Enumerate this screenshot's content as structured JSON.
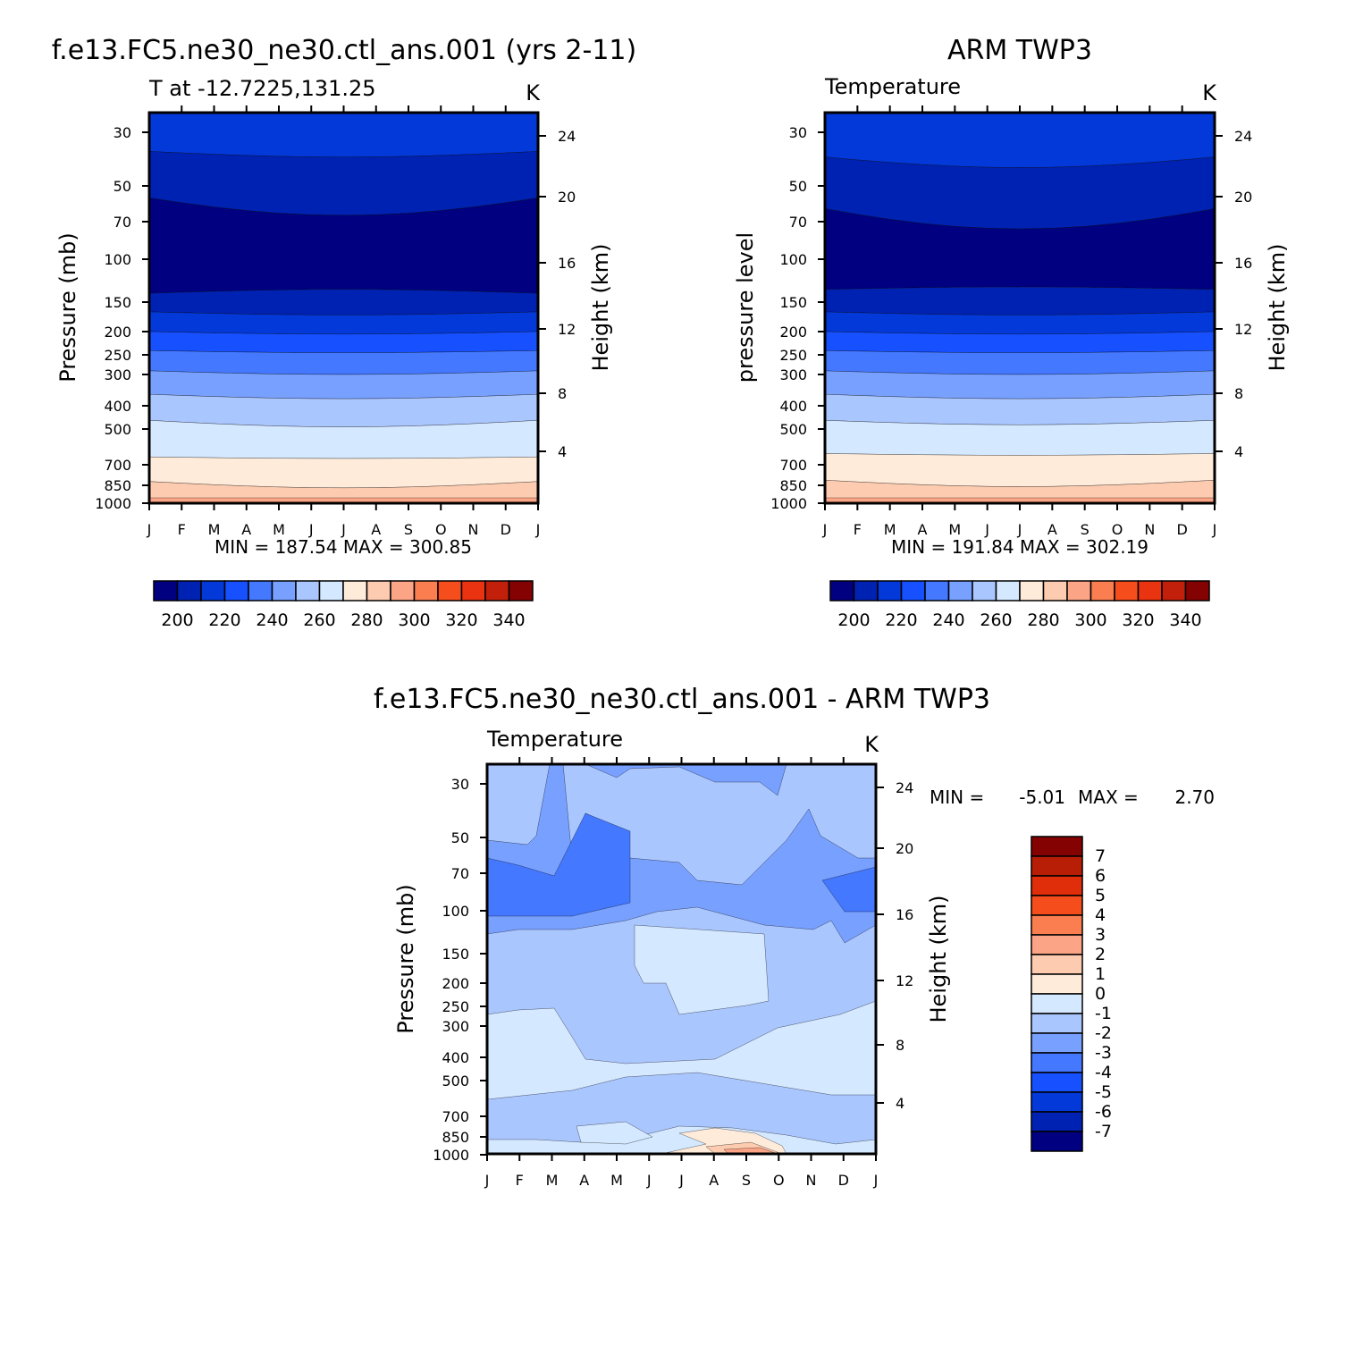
{
  "palettes": {
    "abs": [
      "#000080",
      "#0022b2",
      "#0338d9",
      "#1650ff",
      "#4478ff",
      "#78a0ff",
      "#aac6ff",
      "#d4e8ff",
      "#ffebda",
      "#fccbb0",
      "#fca486",
      "#fb7e51",
      "#f54d1c",
      "#ea3310",
      "#c2200a",
      "#850202"
    ],
    "diff": [
      "#000080",
      "#0022b2",
      "#0338d9",
      "#1650ff",
      "#4478ff",
      "#78a0ff",
      "#aac6ff",
      "#d4e8ff",
      "#ffebda",
      "#fccbb0",
      "#fca486",
      "#fb7e51",
      "#f54d1c",
      "#e02d0a",
      "#b81e06",
      "#850202"
    ]
  },
  "panels": [
    {
      "id": "model",
      "title": "f.e13.FC5.ne30_ne30.ctl_ans.001 (yrs 2-11)",
      "subtitle_left": "T at -12.7225,131.25",
      "subtitle_right": "K",
      "ylabel": "Pressure (mb)",
      "y2label": "Height (km)",
      "minmax": "MIN = 187.54 MAX = 300.85",
      "colorbar_labels": [
        "200",
        "220",
        "240",
        "260",
        "280",
        "300",
        "320",
        "340"
      ]
    },
    {
      "id": "obs",
      "title": "ARM TWP3",
      "subtitle_left": "Temperature",
      "subtitle_right": "K",
      "ylabel": "pressure level",
      "y2label": "Height (km)",
      "minmax": "MIN = 191.84 MAX = 302.19",
      "colorbar_labels": [
        "200",
        "220",
        "240",
        "260",
        "280",
        "300",
        "320",
        "340"
      ]
    },
    {
      "id": "diff",
      "title": "f.e13.FC5.ne30_ne30.ctl_ans.001 - ARM TWP3",
      "subtitle_left": "Temperature",
      "subtitle_right": "K",
      "ylabel": "Pressure (mb)",
      "y2label": "Height (km)",
      "minmax_min_label": "MIN =",
      "minmax_min": "-5.01",
      "minmax_max_label": "MAX =",
      "minmax_max": "2.70",
      "colorbar_labels": [
        "7",
        "6",
        "5",
        "4",
        "3",
        "2",
        "1",
        "0",
        "-1",
        "-2",
        "-3",
        "-4",
        "-5",
        "-6",
        "-7"
      ]
    }
  ],
  "chart_data": [
    {
      "type": "heatmap",
      "title": "f.e13.FC5.ne30_ne30.ctl_ans.001 (yrs 2-11)",
      "months": [
        "J",
        "F",
        "M",
        "A",
        "M",
        "J",
        "J",
        "A",
        "S",
        "O",
        "N",
        "D",
        "J"
      ],
      "pressure_ticks": [
        30,
        50,
        70,
        100,
        150,
        200,
        250,
        300,
        400,
        500,
        700,
        850,
        1000
      ],
      "height_ticks": [
        4,
        8,
        12,
        16,
        20,
        24
      ],
      "units": "K",
      "contour_levels": [
        195,
        200,
        205,
        210,
        215,
        220,
        225,
        230,
        235,
        240,
        245,
        250,
        255,
        260,
        265,
        270,
        275,
        280,
        285,
        290,
        295,
        300,
        305,
        310,
        315,
        320,
        325,
        330,
        335,
        340,
        345
      ],
      "colorbar_levels": [
        200,
        220,
        240,
        260,
        280,
        300,
        320,
        340
      ],
      "band_boundaries_pressure_mb": [
        {
          "level": "200/220",
          "jan": 36,
          "jul": 38
        },
        {
          "level": "<200 top",
          "jan": 56,
          "jul": 66
        },
        {
          "level": "200 bottom",
          "jan": 138,
          "jul": 133
        },
        {
          "level": "220",
          "jan": 165,
          "jul": 170
        },
        {
          "level": "230",
          "jan": 200,
          "jul": 205
        },
        {
          "level": "240",
          "jan": 240,
          "jul": 245
        },
        {
          "level": "250",
          "jan": 290,
          "jul": 300
        },
        {
          "level": "260",
          "jan": 360,
          "jul": 375
        },
        {
          "level": "270",
          "jan": 460,
          "jul": 490
        },
        {
          "level": "280",
          "jan": 650,
          "jul": 660
        },
        {
          "level": "290",
          "jan": 820,
          "jul": 870
        }
      ],
      "min": 187.54,
      "max": 300.85
    },
    {
      "type": "heatmap",
      "title": "ARM TWP3",
      "months": [
        "J",
        "F",
        "M",
        "A",
        "M",
        "J",
        "J",
        "A",
        "S",
        "O",
        "N",
        "D",
        "J"
      ],
      "pressure_ticks": [
        30,
        50,
        70,
        100,
        150,
        200,
        250,
        300,
        400,
        500,
        700,
        850,
        1000
      ],
      "height_ticks": [
        4,
        8,
        12,
        16,
        20,
        24
      ],
      "units": "K",
      "colorbar_levels": [
        200,
        220,
        240,
        260,
        280,
        300,
        320,
        340
      ],
      "band_boundaries_pressure_mb": [
        {
          "level": "200/220",
          "jan": 38,
          "jul": 42
        },
        {
          "level": "<200 top",
          "jan": 62,
          "jul": 75
        },
        {
          "level": "200 bottom",
          "jan": 133,
          "jul": 130
        },
        {
          "level": "220",
          "jan": 165,
          "jul": 170
        },
        {
          "level": "230",
          "jan": 200,
          "jul": 205
        },
        {
          "level": "240",
          "jan": 240,
          "jul": 245
        },
        {
          "level": "250",
          "jan": 290,
          "jul": 300
        },
        {
          "level": "260",
          "jan": 360,
          "jul": 375
        },
        {
          "level": "270",
          "jan": 460,
          "jul": 480
        },
        {
          "level": "280",
          "jan": 630,
          "jul": 640
        },
        {
          "level": "290",
          "jan": 810,
          "jul": 860
        }
      ],
      "min": 191.84,
      "max": 302.19
    },
    {
      "type": "heatmap",
      "title": "f.e13.FC5.ne30_ne30.ctl_ans.001 - ARM TWP3",
      "months": [
        "J",
        "F",
        "M",
        "A",
        "M",
        "J",
        "J",
        "A",
        "S",
        "O",
        "N",
        "D",
        "J"
      ],
      "pressure_ticks": [
        30,
        50,
        70,
        100,
        150,
        200,
        250,
        300,
        400,
        500,
        700,
        850,
        1000
      ],
      "height_ticks": [
        4,
        8,
        12,
        16,
        20,
        24
      ],
      "units": "K",
      "colorbar_levels": [
        7,
        6,
        5,
        4,
        3,
        2,
        1,
        0,
        -1,
        -2,
        -3,
        -4,
        -5,
        -6,
        -7
      ],
      "min": -5.01,
      "max": 2.7
    }
  ]
}
